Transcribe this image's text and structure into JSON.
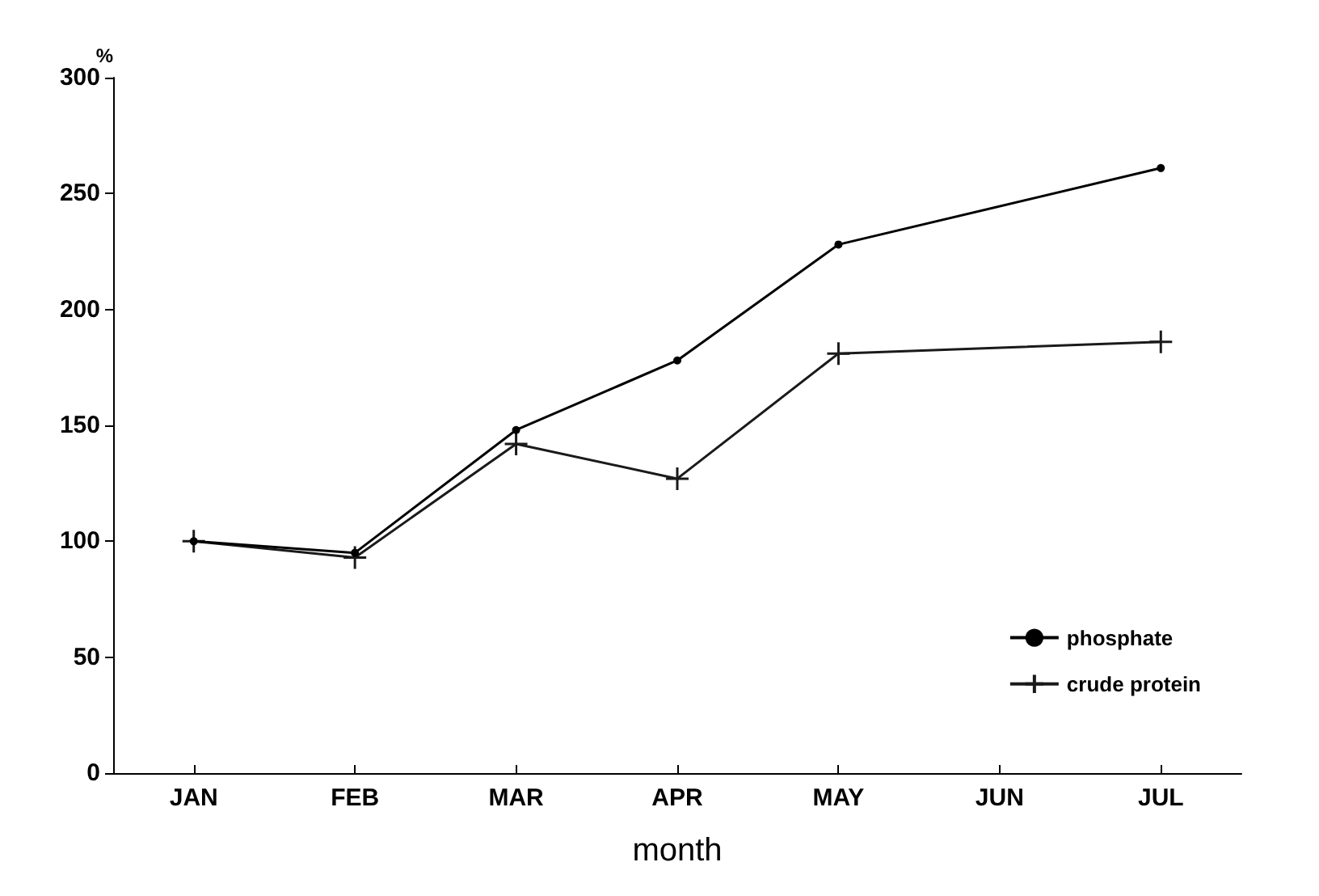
{
  "chart_data": {
    "type": "line",
    "xlabel": "month",
    "ylabel": "%",
    "categories": [
      "JAN",
      "FEB",
      "MAR",
      "APR",
      "MAY",
      "JUN",
      "JUL"
    ],
    "series": [
      {
        "name": "phosphate",
        "color": "#000000",
        "marker": "circle",
        "values": [
          100,
          95,
          148,
          178,
          228,
          null,
          261
        ]
      },
      {
        "name": "crude protein",
        "color": "#1a1a1a",
        "marker": "cross",
        "values": [
          100,
          93,
          142,
          127,
          181,
          null,
          186
        ]
      }
    ],
    "ylim": [
      0,
      300
    ],
    "yticks": [
      0,
      50,
      100,
      150,
      200,
      250,
      300
    ],
    "grid": false,
    "legend": "bottom right",
    "line_style": "solid"
  }
}
